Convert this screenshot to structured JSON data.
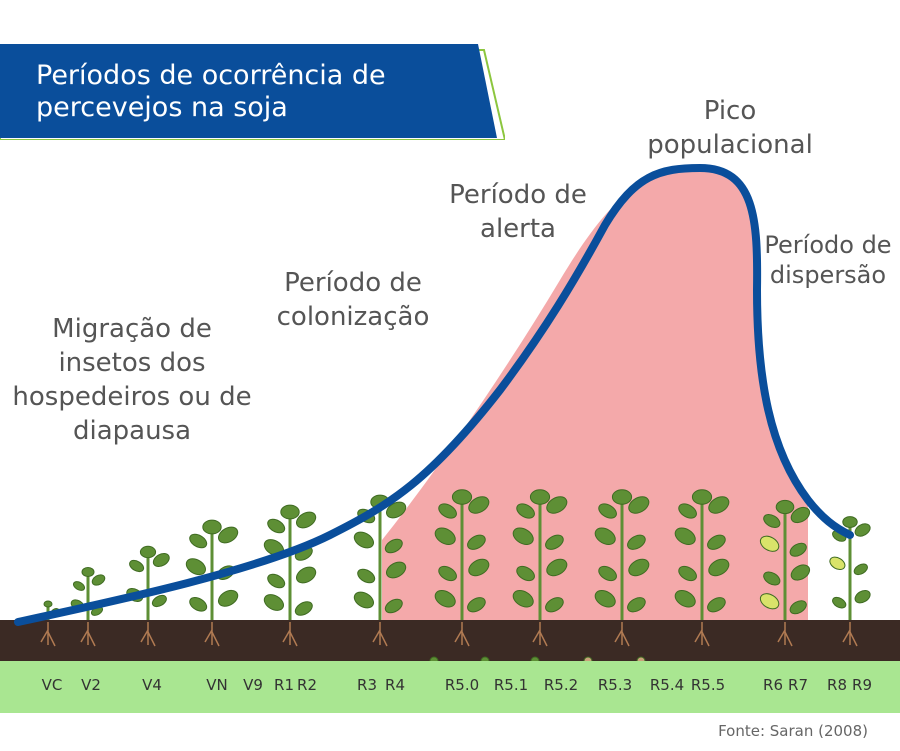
{
  "title": "Períodos de ocorrência de percevejos na soja",
  "labels": {
    "migration": "Migração de insetos dos hospedeiros ou de diapausa",
    "colonization": "Período de colonização",
    "alert": "Período de alerta",
    "peak": "Pico populacional",
    "dispersion": "Período de dispersão"
  },
  "stages": [
    "VC",
    "V2",
    "V4",
    "VN",
    "V9",
    "R1",
    "R2",
    "R3",
    "R4",
    "R5.0",
    "R5.1",
    "R5.2",
    "R5.3",
    "R5.4",
    "R5.5",
    "R6",
    "R7",
    "R8",
    "R9"
  ],
  "source": "Fonte: Saran (2008)",
  "colors": {
    "banner": "#0a4e9b",
    "banner_accent": "#8cc63f",
    "curve": "#0a4e9b",
    "fill": "#f4a9aa",
    "soil": "#3b2a24",
    "stage_bar": "#a9e691",
    "leaf": "#5e8f35"
  }
}
